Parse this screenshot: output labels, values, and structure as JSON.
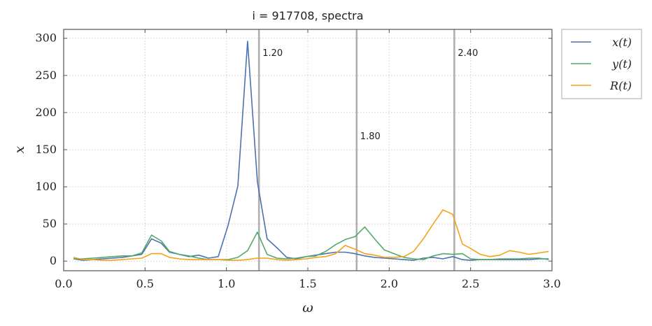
{
  "chart_data": {
    "type": "line",
    "title": "i = 917708,  spectra",
    "xlabel": "ω",
    "ylabel": "x",
    "xlim": [
      0.0,
      3.0
    ],
    "ylim": [
      -13,
      312
    ],
    "xticks": [
      0.0,
      0.5,
      1.0,
      1.5,
      2.0,
      2.5,
      3.0
    ],
    "xtick_labels": [
      "0.0",
      "0.5",
      "1.0",
      "1.5",
      "2.0",
      "2.5",
      "3.0"
    ],
    "yticks": [
      0,
      50,
      100,
      150,
      200,
      250,
      300
    ],
    "ytick_labels": [
      "0",
      "50",
      "100",
      "150",
      "200",
      "250",
      "300"
    ],
    "grid": true,
    "legend_position": "outside-top-right",
    "x": [
      0.06,
      0.12,
      0.18,
      0.24,
      0.3,
      0.36,
      0.42,
      0.48,
      0.54,
      0.6,
      0.65,
      0.71,
      0.77,
      0.83,
      0.89,
      0.95,
      1.01,
      1.07,
      1.13,
      1.19,
      1.25,
      1.31,
      1.37,
      1.43,
      1.49,
      1.55,
      1.61,
      1.67,
      1.73,
      1.79,
      1.85,
      1.91,
      1.97,
      2.03,
      2.09,
      2.15,
      2.21,
      2.27,
      2.33,
      2.39,
      2.45,
      2.5,
      2.56,
      2.62,
      2.68,
      2.74,
      2.8,
      2.86,
      2.92,
      2.98
    ],
    "series": [
      {
        "name": "x(t)",
        "color": "#4c72b0",
        "values": [
          3,
          1,
          2,
          3,
          4,
          5,
          7,
          9,
          30,
          24,
          12,
          9,
          6,
          8,
          4,
          6,
          48,
          101,
          296,
          107,
          30,
          18,
          5,
          3,
          6,
          8,
          10,
          12,
          12,
          10,
          7,
          5,
          4,
          3,
          2,
          1,
          4,
          5,
          3,
          6,
          2,
          1,
          2,
          2,
          2,
          2,
          2,
          2,
          3,
          3
        ]
      },
      {
        "name": "y(t)",
        "color": "#55a868",
        "values": [
          3,
          3,
          4,
          5,
          6,
          7,
          7,
          11,
          35,
          27,
          13,
          9,
          7,
          4,
          2,
          2,
          2,
          5,
          14,
          39,
          9,
          4,
          3,
          4,
          6,
          7,
          13,
          22,
          29,
          33,
          46,
          30,
          15,
          10,
          5,
          3,
          2,
          7,
          10,
          9,
          10,
          3,
          2,
          2,
          3,
          3,
          3,
          4,
          4,
          2
        ]
      },
      {
        "name": "R(t)",
        "color": "#f5a21b",
        "values": [
          5,
          2,
          2,
          1,
          1,
          2,
          3,
          4,
          10,
          10,
          5,
          3,
          2,
          2,
          2,
          2,
          1,
          1,
          2,
          4,
          4,
          2,
          1,
          2,
          3,
          5,
          6,
          10,
          21,
          16,
          10,
          8,
          5,
          5,
          6,
          13,
          30,
          50,
          69,
          63,
          23,
          17,
          9,
          6,
          8,
          14,
          12,
          9,
          11,
          13
        ]
      }
    ],
    "vlines": [
      {
        "x": 1.2,
        "label": "1.20",
        "label_y": 281
      },
      {
        "x": 1.8,
        "label": "1.80",
        "label_y": 169
      },
      {
        "x": 2.4,
        "label": "2.40",
        "label_y": 281
      }
    ],
    "colors": {
      "vline": "#b0b0b0",
      "grid": "#cfcfcf",
      "spine": "#555555"
    }
  }
}
